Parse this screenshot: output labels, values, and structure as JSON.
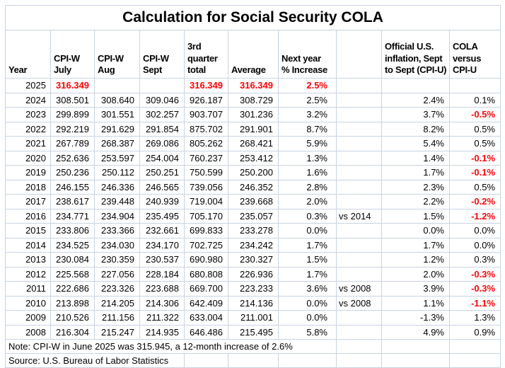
{
  "title": "Calculation for Social Security COLA",
  "colors": {
    "red": "#ff0000",
    "gridline": "#c9d3e3",
    "text": "#000000",
    "background": "#ffffff"
  },
  "table": {
    "columns": [
      {
        "key": "year",
        "lines": [
          "Year"
        ]
      },
      {
        "key": "july",
        "lines": [
          "CPI-W",
          "July"
        ]
      },
      {
        "key": "aug",
        "lines": [
          "CPI-W",
          "Aug"
        ]
      },
      {
        "key": "sept",
        "lines": [
          "CPI-W",
          "Sept"
        ]
      },
      {
        "key": "q3_total",
        "lines": [
          "3rd",
          "quarter",
          "total"
        ]
      },
      {
        "key": "average",
        "lines": [
          "Average"
        ]
      },
      {
        "key": "next_pct",
        "lines": [
          "Next year",
          "% Increase"
        ]
      },
      {
        "key": "note",
        "lines": []
      },
      {
        "key": "cpiu",
        "lines": [
          "Official U.S.",
          "inflation, Sept",
          "to Sept (CPI-U)"
        ]
      },
      {
        "key": "diff",
        "lines": [
          "COLA",
          "versus",
          "CPI-U"
        ]
      }
    ],
    "rows": [
      {
        "year": "2025",
        "july": "316.349",
        "aug": "",
        "sept": "",
        "q3_total": "316.349",
        "average": "316.349",
        "next_pct": "2.5%",
        "note": "",
        "cpiu": "",
        "diff": "",
        "red": [
          "july",
          "q3_total",
          "average",
          "next_pct"
        ]
      },
      {
        "year": "2024",
        "july": "308.501",
        "aug": "308.640",
        "sept": "309.046",
        "q3_total": "926.187",
        "average": "308.729",
        "next_pct": "2.5%",
        "note": "",
        "cpiu": "2.4%",
        "diff": "0.1%",
        "red": []
      },
      {
        "year": "2023",
        "july": "299.899",
        "aug": "301.551",
        "sept": "302.257",
        "q3_total": "903.707",
        "average": "301.236",
        "next_pct": "3.2%",
        "note": "",
        "cpiu": "3.7%",
        "diff": "-0.5%",
        "red": [
          "diff"
        ]
      },
      {
        "year": "2022",
        "july": "292.219",
        "aug": "291.629",
        "sept": "291.854",
        "q3_total": "875.702",
        "average": "291.901",
        "next_pct": "8.7%",
        "note": "",
        "cpiu": "8.2%",
        "diff": "0.5%",
        "red": []
      },
      {
        "year": "2021",
        "july": "267.789",
        "aug": "268.387",
        "sept": "269.086",
        "q3_total": "805.262",
        "average": "268.421",
        "next_pct": "5.9%",
        "note": "",
        "cpiu": "5.4%",
        "diff": "0.5%",
        "red": []
      },
      {
        "year": "2020",
        "july": "252.636",
        "aug": "253.597",
        "sept": "254.004",
        "q3_total": "760.237",
        "average": "253.412",
        "next_pct": "1.3%",
        "note": "",
        "cpiu": "1.4%",
        "diff": "-0.1%",
        "red": [
          "diff"
        ]
      },
      {
        "year": "2019",
        "july": "250.236",
        "aug": "250.112",
        "sept": "250.251",
        "q3_total": "750.599",
        "average": "250.200",
        "next_pct": "1.6%",
        "note": "",
        "cpiu": "1.7%",
        "diff": "-0.1%",
        "red": [
          "diff"
        ]
      },
      {
        "year": "2018",
        "july": "246.155",
        "aug": "246.336",
        "sept": "246.565",
        "q3_total": "739.056",
        "average": "246.352",
        "next_pct": "2.8%",
        "note": "",
        "cpiu": "2.3%",
        "diff": "0.5%",
        "red": []
      },
      {
        "year": "2017",
        "july": "238.617",
        "aug": "239.448",
        "sept": "240.939",
        "q3_total": "719.004",
        "average": "239.668",
        "next_pct": "2.0%",
        "note": "",
        "cpiu": "2.2%",
        "diff": "-0.2%",
        "red": [
          "diff"
        ]
      },
      {
        "year": "2016",
        "july": "234.771",
        "aug": "234.904",
        "sept": "235.495",
        "q3_total": "705.170",
        "average": "235.057",
        "next_pct": "0.3%",
        "note": "vs 2014",
        "cpiu": "1.5%",
        "diff": "-1.2%",
        "red": [
          "diff"
        ]
      },
      {
        "year": "2015",
        "july": "233.806",
        "aug": "233.366",
        "sept": "232.661",
        "q3_total": "699.833",
        "average": "233.278",
        "next_pct": "0.0%",
        "note": "",
        "cpiu": "0.0%",
        "diff": "0.0%",
        "red": []
      },
      {
        "year": "2014",
        "july": "234.525",
        "aug": "234.030",
        "sept": "234.170",
        "q3_total": "702.725",
        "average": "234.242",
        "next_pct": "1.7%",
        "note": "",
        "cpiu": "1.7%",
        "diff": "0.0%",
        "red": []
      },
      {
        "year": "2013",
        "july": "230.084",
        "aug": "230.359",
        "sept": "230.537",
        "q3_total": "690.980",
        "average": "230.327",
        "next_pct": "1.5%",
        "note": "",
        "cpiu": "1.2%",
        "diff": "0.3%",
        "red": []
      },
      {
        "year": "2012",
        "july": "225.568",
        "aug": "227.056",
        "sept": "228.184",
        "q3_total": "680.808",
        "average": "226.936",
        "next_pct": "1.7%",
        "note": "",
        "cpiu": "2.0%",
        "diff": "-0.3%",
        "red": [
          "diff"
        ]
      },
      {
        "year": "2011",
        "july": "222.686",
        "aug": "223.326",
        "sept": "223.688",
        "q3_total": "669.700",
        "average": "223.233",
        "next_pct": "3.6%",
        "note": "vs 2008",
        "cpiu": "3.9%",
        "diff": "-0.3%",
        "red": [
          "diff"
        ]
      },
      {
        "year": "2010",
        "july": "213.898",
        "aug": "214.205",
        "sept": "214.306",
        "q3_total": "642.409",
        "average": "214.136",
        "next_pct": "0.0%",
        "note": "vs 2008",
        "cpiu": "1.1%",
        "diff": "-1.1%",
        "red": [
          "diff"
        ]
      },
      {
        "year": "2009",
        "july": "210.526",
        "aug": "211.156",
        "sept": "211.322",
        "q3_total": "633.004",
        "average": "211.001",
        "next_pct": "0.0%",
        "note": "",
        "cpiu": "-1.3%",
        "diff": "1.3%",
        "red": []
      },
      {
        "year": "2008",
        "july": "216.304",
        "aug": "215.247",
        "sept": "214.935",
        "q3_total": "646.486",
        "average": "215.495",
        "next_pct": "5.8%",
        "note": "",
        "cpiu": "4.9%",
        "diff": "0.9%",
        "red": []
      }
    ]
  },
  "footnotes": {
    "note": "Note: CPI-W in June 2025 was 315.945, a 12-month increase of 2.6%",
    "source": "Source: U.S. Bureau of Labor Statistics"
  }
}
